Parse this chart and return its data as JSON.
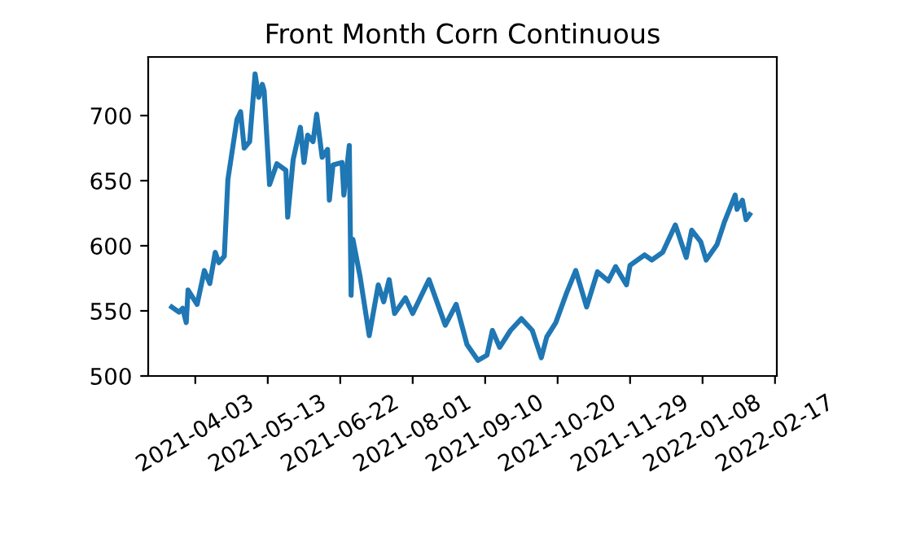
{
  "chart_data": {
    "type": "line",
    "title": "Front Month Corn Continuous",
    "color": "#1f77b4",
    "line_style": "solid",
    "marker": "none",
    "grid": false,
    "legend": false,
    "x": [
      "2021-03-21",
      "2021-03-25",
      "2021-03-27",
      "2021-03-29",
      "2021-03-30",
      "2021-04-04",
      "2021-04-08",
      "2021-04-11",
      "2021-04-14",
      "2021-04-16",
      "2021-04-19",
      "2021-04-21",
      "2021-04-26",
      "2021-04-28",
      "2021-04-30",
      "2021-05-03",
      "2021-05-06",
      "2021-05-08",
      "2021-05-10",
      "2021-05-11",
      "2021-05-14",
      "2021-05-18",
      "2021-05-23",
      "2021-05-24",
      "2021-05-27",
      "2021-05-31",
      "2021-06-02",
      "2021-06-04",
      "2021-06-07",
      "2021-06-09",
      "2021-06-12",
      "2021-06-15",
      "2021-06-16",
      "2021-06-18",
      "2021-06-23",
      "2021-06-24",
      "2021-06-27",
      "2021-06-28",
      "2021-06-29",
      "2021-07-03",
      "2021-07-08",
      "2021-07-13",
      "2021-07-16",
      "2021-07-19",
      "2021-07-22",
      "2021-07-28",
      "2021-08-01",
      "2021-08-10",
      "2021-08-19",
      "2021-08-25",
      "2021-08-31",
      "2021-09-06",
      "2021-09-11",
      "2021-09-14",
      "2021-09-18",
      "2021-09-24",
      "2021-09-30",
      "2021-10-06",
      "2021-10-11",
      "2021-10-14",
      "2021-10-19",
      "2021-10-25",
      "2021-10-30",
      "2021-11-05",
      "2021-11-11",
      "2021-11-17",
      "2021-11-21",
      "2021-11-27",
      "2021-11-29",
      "2021-12-07",
      "2021-12-11",
      "2021-12-17",
      "2021-12-24",
      "2021-12-30",
      "2022-01-02",
      "2022-01-07",
      "2022-01-10",
      "2022-01-16",
      "2022-01-20",
      "2022-01-26",
      "2022-01-27",
      "2022-01-30",
      "2022-02-01",
      "2022-02-03"
    ],
    "values": [
      553,
      549,
      552,
      541,
      566,
      555,
      581,
      571,
      595,
      587,
      592,
      651,
      697,
      703,
      675,
      680,
      732,
      714,
      724,
      719,
      647,
      663,
      658,
      622,
      666,
      691,
      664,
      685,
      680,
      701,
      668,
      674,
      635,
      662,
      664,
      639,
      677,
      562,
      605,
      576,
      531,
      570,
      557,
      574,
      548,
      560,
      548,
      574,
      539,
      555,
      524,
      512,
      516,
      535,
      522,
      535,
      544,
      535,
      514,
      530,
      541,
      564,
      581,
      553,
      580,
      573,
      584,
      570,
      585,
      593,
      589,
      595,
      616,
      591,
      612,
      603,
      589,
      601,
      618,
      639,
      628,
      635,
      620,
      624
    ],
    "xlim": [
      "2021-03-08",
      "2022-02-18"
    ],
    "xticks": [
      "2021-04-03",
      "2021-05-13",
      "2021-06-22",
      "2021-08-01",
      "2021-09-10",
      "2021-10-20",
      "2021-11-29",
      "2022-01-08",
      "2022-02-17"
    ],
    "ylim": [
      500,
      745
    ],
    "yticks": [
      500,
      550,
      600,
      650,
      700
    ]
  }
}
